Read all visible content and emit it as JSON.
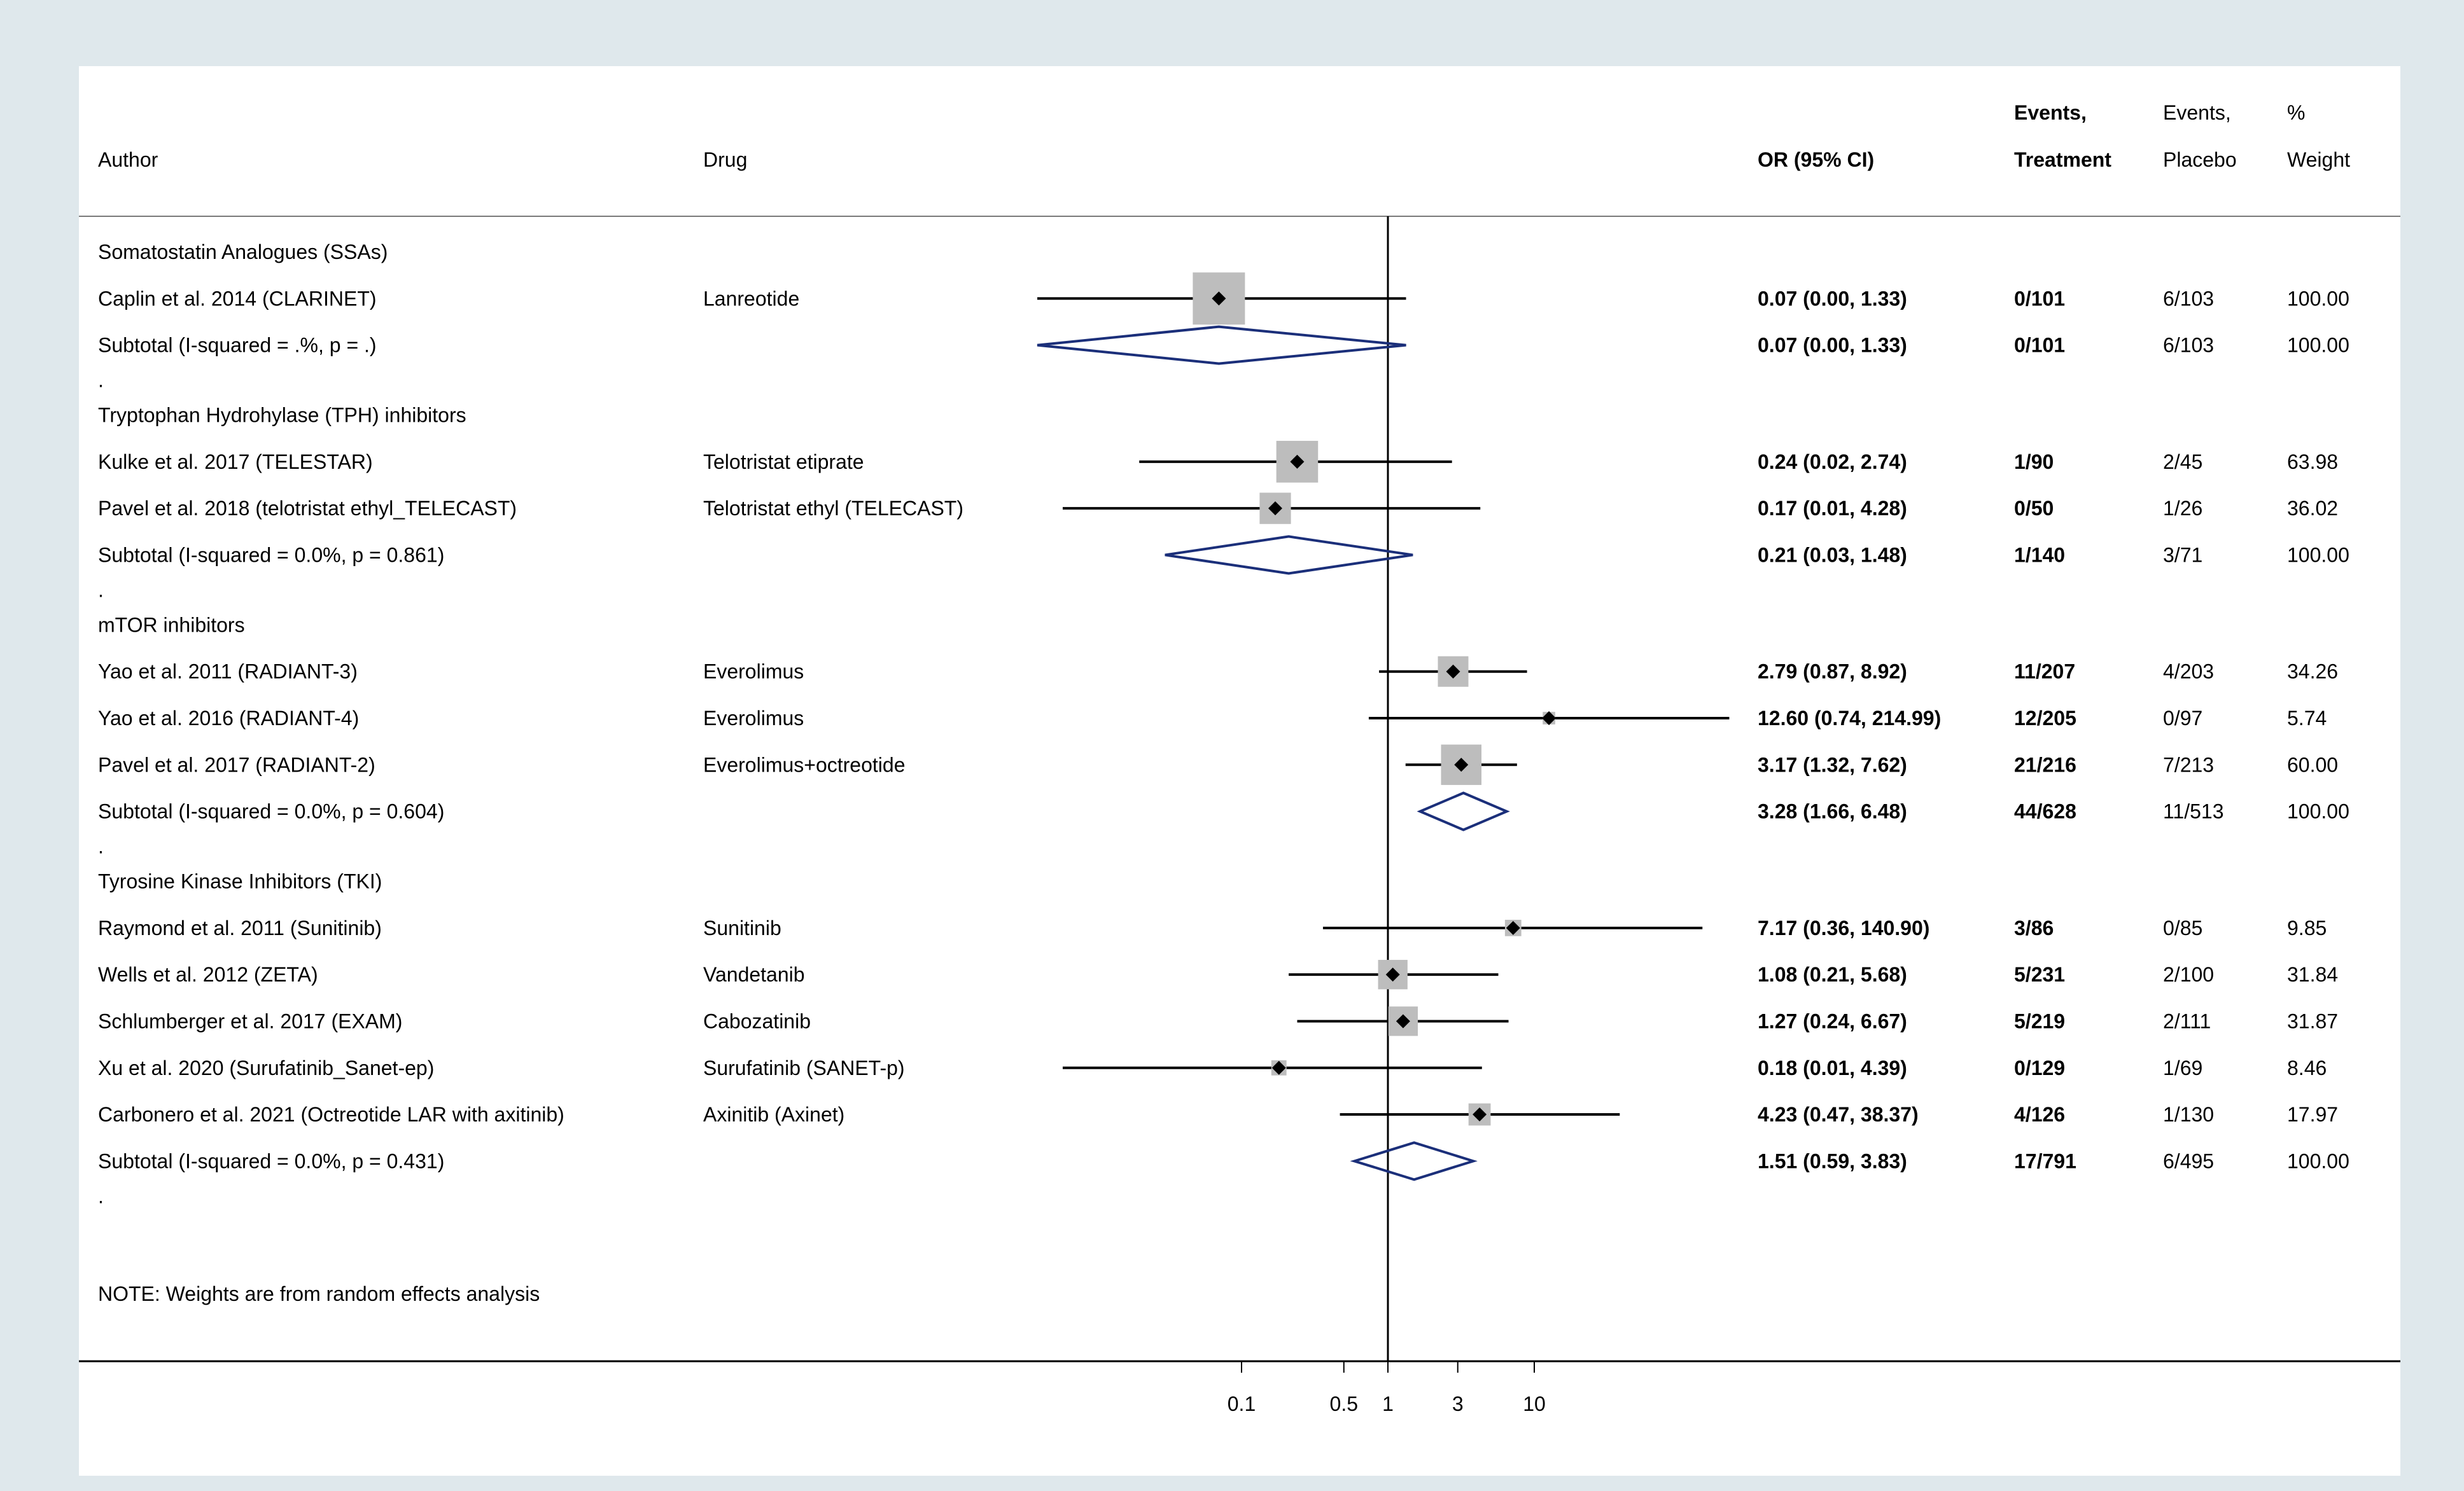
{
  "chart_data": {
    "type": "forest",
    "scale": "log",
    "x_ticks": [
      "0.1",
      "0.5",
      "1",
      "3",
      "10"
    ],
    "x_tick_values": [
      0.1,
      0.5,
      1,
      3,
      10
    ],
    "null_line": 1,
    "headers": {
      "author": "Author",
      "drug": "Drug",
      "or_ci": "OR (95% CI)",
      "events_treatment": [
        "Events,",
        "Treatment"
      ],
      "events_placebo": [
        "Events,",
        "Placebo"
      ],
      "weight": [
        "%",
        "Weight"
      ]
    },
    "groups": [
      {
        "name": "Somatostatin Analogues (SSAs)",
        "studies": [
          {
            "author": "Caplin et al. 2014 (CLARINET)",
            "drug": "Lanreotide",
            "or": 0.07,
            "lo": 0.0035,
            "hi": 1.33,
            "or_ci": "0.07 (0.00, 1.33)",
            "events_treatment": "0/101",
            "events_placebo": "6/103",
            "weight": "100.00",
            "weight_value": 100.0
          }
        ],
        "subtotal": {
          "label": "Subtotal  (I-squared = .%, p = .)",
          "or": 0.07,
          "lo": 0.0035,
          "hi": 1.33,
          "or_ci": "0.07 (0.00, 1.33)",
          "events_treatment": "0/101",
          "events_placebo": "6/103",
          "weight": "100.00"
        },
        "spacer": "."
      },
      {
        "name": "Tryptophan Hydrohylase (TPH) inhibitors",
        "studies": [
          {
            "author": "Kulke et al. 2017 (TELESTAR)",
            "drug": "Telotristat etiprate",
            "or": 0.24,
            "lo": 0.02,
            "hi": 2.74,
            "or_ci": "0.24 (0.02, 2.74)",
            "events_treatment": "1/90",
            "events_placebo": "2/45",
            "weight": "63.98",
            "weight_value": 63.98
          },
          {
            "author": "Pavel et al. 2018 (telotristat ethyl_TELECAST)",
            "drug": "Telotristat ethyl (TELECAST)",
            "or": 0.17,
            "lo": 0.006,
            "hi": 4.28,
            "or_ci": "0.17 (0.01, 4.28)",
            "events_treatment": "0/50",
            "events_placebo": "1/26",
            "weight": "36.02",
            "weight_value": 36.02
          }
        ],
        "subtotal": {
          "label": "Subtotal  (I-squared = 0.0%, p = 0.861)",
          "or": 0.21,
          "lo": 0.03,
          "hi": 1.48,
          "or_ci": "0.21 (0.03, 1.48)",
          "events_treatment": "1/140",
          "events_placebo": "3/71",
          "weight": "100.00"
        },
        "spacer": "."
      },
      {
        "name": "mTOR inhibitors",
        "studies": [
          {
            "author": "Yao et al. 2011 (RADIANT-3)",
            "drug": "Everolimus",
            "or": 2.79,
            "lo": 0.87,
            "hi": 8.92,
            "or_ci": "2.79 (0.87, 8.92)",
            "events_treatment": "11/207",
            "events_placebo": "4/203",
            "weight": "34.26",
            "weight_value": 34.26
          },
          {
            "author": "Yao et al. 2016 (RADIANT-4)",
            "drug": "Everolimus",
            "or": 12.6,
            "lo": 0.74,
            "hi": 214.99,
            "or_ci": "12.60 (0.74, 214.99)",
            "events_treatment": "12/205",
            "events_placebo": "0/97",
            "weight": "5.74",
            "weight_value": 5.74
          },
          {
            "author": "Pavel et al. 2017 (RADIANT-2)",
            "drug": "Everolimus+octreotide",
            "or": 3.17,
            "lo": 1.32,
            "hi": 7.62,
            "or_ci": "3.17 (1.32, 7.62)",
            "events_treatment": "21/216",
            "events_placebo": "7/213",
            "weight": "60.00",
            "weight_value": 60.0
          }
        ],
        "subtotal": {
          "label": "Subtotal  (I-squared = 0.0%, p = 0.604)",
          "or": 3.28,
          "lo": 1.66,
          "hi": 6.48,
          "or_ci": "3.28 (1.66, 6.48)",
          "events_treatment": "44/628",
          "events_placebo": "11/513",
          "weight": "100.00"
        },
        "spacer": "."
      },
      {
        "name": "Tyrosine Kinase Inhibitors (TKI)",
        "studies": [
          {
            "author": "Raymond et al. 2011 (Sunitinib)",
            "drug": "Sunitinib",
            "or": 7.17,
            "lo": 0.36,
            "hi": 140.9,
            "or_ci": "7.17 (0.36, 140.90)",
            "events_treatment": "3/86",
            "events_placebo": "0/85",
            "weight": "9.85",
            "weight_value": 9.85
          },
          {
            "author": "Wells et al. 2012 (ZETA)",
            "drug": "Vandetanib",
            "or": 1.08,
            "lo": 0.21,
            "hi": 5.68,
            "or_ci": "1.08 (0.21, 5.68)",
            "events_treatment": "5/231",
            "events_placebo": "2/100",
            "weight": "31.84",
            "weight_value": 31.84
          },
          {
            "author": "Schlumberger et al. 2017 (EXAM)",
            "drug": "Cabozatinib",
            "or": 1.27,
            "lo": 0.24,
            "hi": 6.67,
            "or_ci": "1.27 (0.24, 6.67)",
            "events_treatment": "5/219",
            "events_placebo": "2/111",
            "weight": "31.87",
            "weight_value": 31.87
          },
          {
            "author": "Xu et al. 2020 (Surufatinib_Sanet-ep)",
            "drug": "Surufatinib (SANET-p)",
            "or": 0.18,
            "lo": 0.006,
            "hi": 4.39,
            "or_ci": "0.18 (0.01, 4.39)",
            "events_treatment": "0/129",
            "events_placebo": "1/69",
            "weight": "8.46",
            "weight_value": 8.46
          },
          {
            "author": "Carbonero et al. 2021 (Octreotide LAR with axitinib)",
            "drug": "Axinitib (Axinet)",
            "or": 4.23,
            "lo": 0.47,
            "hi": 38.37,
            "or_ci": "4.23 (0.47, 38.37)",
            "events_treatment": "4/126",
            "events_placebo": "1/130",
            "weight": "17.97",
            "weight_value": 17.97
          }
        ],
        "subtotal": {
          "label": "Subtotal  (I-squared = 0.0%, p = 0.431)",
          "or": 1.51,
          "lo": 0.59,
          "hi": 3.83,
          "or_ci": "1.51 (0.59, 3.83)",
          "events_treatment": "17/791",
          "events_placebo": "6/495",
          "weight": "100.00"
        },
        "spacer": "."
      }
    ],
    "note": "NOTE: Weights are from random effects analysis",
    "colors": {
      "outer_bg": "#dfe8ec",
      "panel_bg": "#ffffff",
      "box": "#bdbdbd",
      "point": "#000000",
      "ci_line": "#000000",
      "diamond": "#1b2f7a",
      "text": "#000000"
    }
  }
}
